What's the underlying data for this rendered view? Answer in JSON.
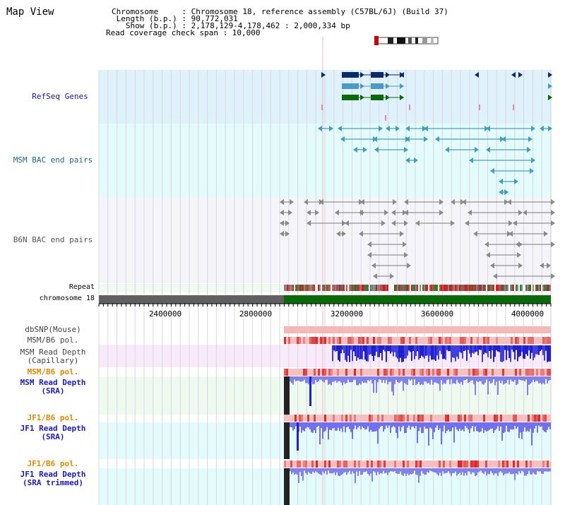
{
  "header": {
    "title": "Map View",
    "info_lines": [
      "Chromosome     : Chromosome 18, reference assembly (C57BL/6J) (Build 37)",
      " Length (b.p.) : 90,772,031",
      "   Show (b.p.) : 2,178,129-4,178,462 : 2,000,334 bp",
      "Read coverage check span : 10,000"
    ]
  },
  "tracks": {
    "refseq": "RefSeq Genes",
    "msm_bac": "MSM BAC end pairs",
    "b6n_bac": "B6N BAC end pairs",
    "repeat": "Repeat",
    "chromosome": "chromosome 18",
    "dbsnp": "dbSNP(Mouse)",
    "msm_b6_pol_1": "MSM/B6 pol.",
    "msm_read_depth_cap": "MSM Read Depth\n(Capillary)",
    "msm_b6_pol_2": "MSM/B6 pol.",
    "msm_read_depth_sra": "MSM Read Depth\n(SRA)",
    "jf1_b6_pol_1": "JF1/B6 pol.",
    "jf1_read_depth_sra": "JF1 Read Depth\n(SRA)",
    "jf1_b6_pol_2": "JF1/B6 pol.",
    "jf1_read_depth_trim": "JF1 Read Depth\n(SRA trimmed)"
  },
  "ruler": {
    "ticks": [
      "2400000",
      "2800000",
      "3200000",
      "3600000",
      "4000000"
    ]
  },
  "colors": {
    "refseq_bg": "#dff2fb",
    "msm_bac_bg": "#e3fbfb",
    "b6n_bac_bg": "#f4f4f9",
    "label_blue": "#1a1a9a",
    "label_teal": "#1a6a8a",
    "label_gray": "#555555",
    "label_orange": "#e08a00",
    "chromosome_green": "#0a6a0a",
    "depth_blue": "#2020d0",
    "depth_light": "#8080f0",
    "snp_pink": "#f4b8b8",
    "snp_red": "#e02020"
  }
}
